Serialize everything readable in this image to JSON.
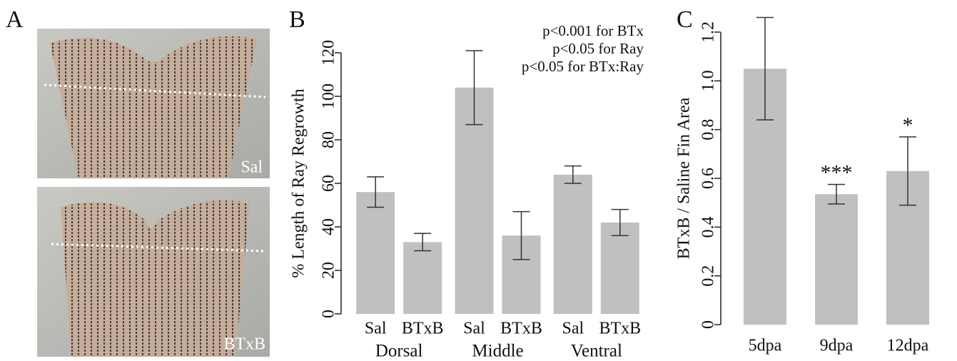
{
  "panel_a": {
    "label": "A",
    "images": [
      "Sal",
      "BTxB"
    ]
  },
  "chart_data": [
    {
      "type": "bar",
      "label": "B",
      "ylabel": "% Length of Ray Regrowth",
      "categories": [
        "Sal",
        "BTxB",
        "Sal",
        "BTxB",
        "Sal",
        "BTxB"
      ],
      "groups": [
        "Dorsal",
        "Middle",
        "Ventral"
      ],
      "values": [
        56,
        33,
        104,
        36,
        64,
        42
      ],
      "errors": [
        7,
        4,
        17,
        11,
        4,
        6
      ],
      "color": "#c0c0c0",
      "ylim": [
        0,
        120
      ],
      "yticks": [
        0,
        20,
        40,
        60,
        80,
        100,
        120
      ],
      "annotations": [
        "p<0.001 for BTx",
        "p<0.05 for Ray",
        "p<0.05 for BTx:Ray"
      ]
    },
    {
      "type": "bar",
      "label": "C",
      "ylabel": "BTxB / Saline Fin Area",
      "categories": [
        "5dpa",
        "9dpa",
        "12dpa"
      ],
      "values": [
        1.05,
        0.535,
        0.63
      ],
      "errors": [
        0.21,
        0.04,
        0.14
      ],
      "significance": [
        null,
        "***",
        "*"
      ],
      "color": "#c0c0c0",
      "ylim": [
        0,
        1.2
      ],
      "yticks": [
        0,
        0.2,
        0.4,
        0.6,
        0.8,
        {
          "value": 1,
          "label": "1.0"
        },
        1.2
      ]
    }
  ]
}
